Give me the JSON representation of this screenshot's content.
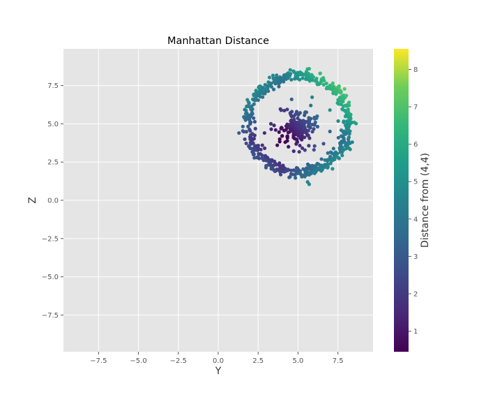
{
  "chart_data": {
    "type": "scatter",
    "title": "Manhattan Distance",
    "xlabel": "Y",
    "ylabel": "Z",
    "xlim": [
      -9.7,
      9.7
    ],
    "ylim": [
      -9.9,
      9.9
    ],
    "xticks": [
      -7.5,
      -5.0,
      -2.5,
      0.0,
      2.5,
      5.0,
      7.5
    ],
    "yticks": [
      -7.5,
      -5.0,
      -2.5,
      0.0,
      2.5,
      5.0,
      7.5
    ],
    "xtick_labels": [
      "−7.5",
      "−5.0",
      "−2.5",
      "0.0",
      "2.5",
      "5.0",
      "7.5"
    ],
    "ytick_labels": [
      "−7.5",
      "−5.0",
      "−2.5",
      "0.0",
      "2.5",
      "5.0",
      "7.5"
    ],
    "grid": true,
    "colormap": "viridis",
    "colorbar": {
      "label": "Distance from (4,4)",
      "range": [
        0.45,
        8.55
      ],
      "ticks": [
        1,
        2,
        3,
        4,
        5,
        6,
        7,
        8
      ],
      "tick_labels": [
        "1",
        "2",
        "3",
        "4",
        "5",
        "6",
        "7",
        "8"
      ]
    },
    "clusters": [
      {
        "shape": "ring",
        "center": [
          5.0,
          5.0
        ],
        "radius": 3.15,
        "spread": 0.18,
        "count": 560
      },
      {
        "shape": "blob",
        "center": [
          5.0,
          4.8
        ],
        "radius": 0.9,
        "spread": 0.9,
        "count": 230
      }
    ],
    "points": [
      [
        5.7,
        8.6
      ],
      [
        7.5,
        7.4
      ],
      [
        7.7,
        7.1
      ],
      [
        8.2,
        6.4
      ],
      [
        8.3,
        5.6
      ],
      [
        8.4,
        3.8
      ],
      [
        8.2,
        3.4
      ],
      [
        7.5,
        2.8
      ],
      [
        7.1,
        2.6
      ],
      [
        5.6,
        1.2
      ],
      [
        5.7,
        1.05
      ],
      [
        1.3,
        4.4
      ],
      [
        3.0,
        2.6
      ],
      [
        2.0,
        3.4
      ],
      [
        2.2,
        3.0
      ],
      [
        7.0,
        5.9
      ],
      [
        7.0,
        4.5
      ],
      [
        6.6,
        3.7
      ],
      [
        6.0,
        3.3
      ],
      [
        3.5,
        4.9
      ],
      [
        3.6,
        4.6
      ],
      [
        3.7,
        3.6
      ],
      [
        4.0,
        4.2
      ],
      [
        4.4,
        3.5
      ],
      [
        4.6,
        6.6
      ],
      [
        5.8,
        6.2
      ],
      [
        6.2,
        5.5
      ],
      [
        3.3,
        5.0
      ],
      [
        2.9,
        4.4
      ],
      [
        4.2,
        3.8
      ]
    ],
    "colors": {
      "axes_bg": "#e5e5e5",
      "grid": "#ffffff",
      "text": "#555555"
    }
  }
}
